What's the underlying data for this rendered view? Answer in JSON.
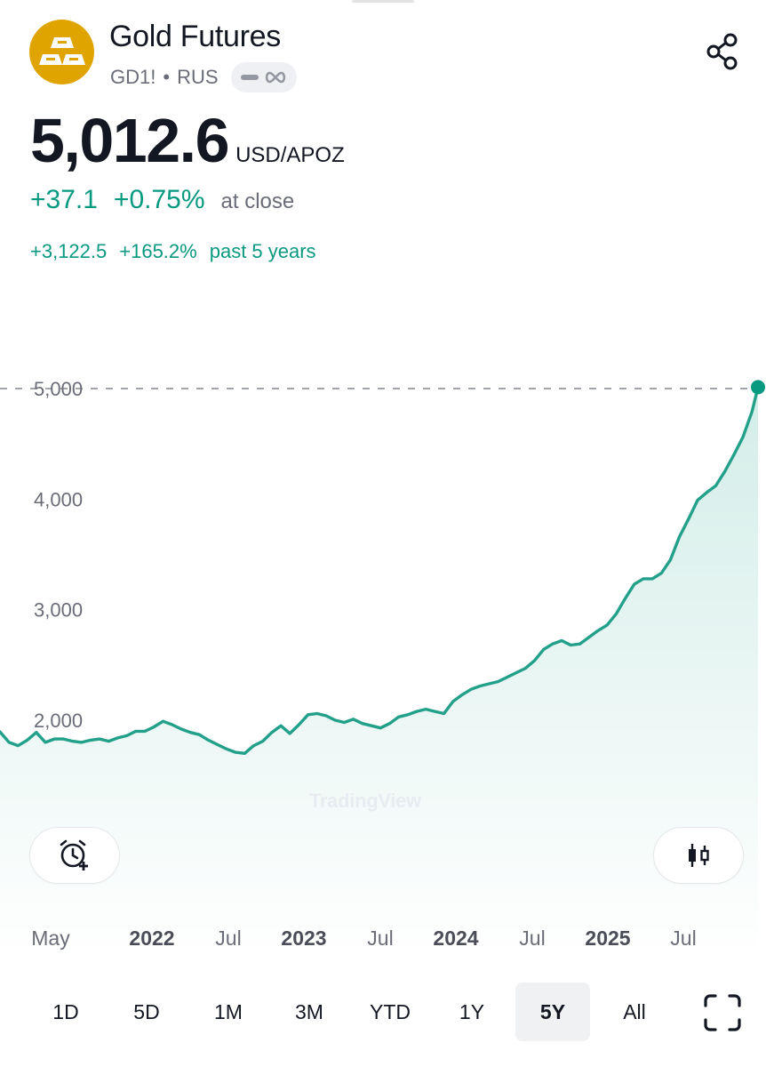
{
  "header": {
    "title": "Gold Futures",
    "symbol": "GD1!",
    "exchange": "RUS",
    "logo_icon": "gold-bars-icon",
    "share_icon": "share-icon",
    "pill_icons": [
      "dash-icon",
      "infinity-icon"
    ]
  },
  "quote": {
    "price": "5,012.6",
    "unit": "USD/APOZ",
    "change_abs": "+37.1",
    "change_pct": "+0.75%",
    "status": "at close",
    "period_abs": "+3,122.5",
    "period_pct": "+165.2%",
    "period_label": "past 5 years"
  },
  "colors": {
    "positive": "#089981",
    "line": "#22a08a",
    "logo_bg": "#e0a400"
  },
  "chart_data": {
    "type": "area",
    "title": "",
    "xlabel": "",
    "ylabel": "",
    "x_tick_labels": [
      "May",
      "2022",
      "Jul",
      "2023",
      "Jul",
      "2024",
      "Jul",
      "2025",
      "Jul"
    ],
    "y_tick_labels": [
      "5,000",
      "4,000",
      "3,000",
      "2,000"
    ],
    "ylim": [
      1200,
      5350
    ],
    "grid": false,
    "last_value": 5012.6,
    "reference_line": 5000,
    "series": [
      {
        "x": [
          "2021-04-05",
          "2021-04-26",
          "2021-05-17",
          "2021-06-07",
          "2021-06-28",
          "2021-07-19",
          "2021-08-09",
          "2021-08-30",
          "2021-09-20",
          "2021-10-11",
          "2021-11-01",
          "2021-11-22",
          "2021-12-13",
          "2022-01-03",
          "2022-01-24",
          "2022-02-14",
          "2022-03-07",
          "2022-03-28",
          "2022-04-18",
          "2022-05-09",
          "2022-05-30",
          "2022-06-20",
          "2022-07-11",
          "2022-08-01",
          "2022-08-22",
          "2022-09-12",
          "2022-10-03",
          "2022-10-24",
          "2022-11-14",
          "2022-12-05",
          "2022-12-26",
          "2023-01-16",
          "2023-02-06",
          "2023-02-27",
          "2023-03-20",
          "2023-04-10",
          "2023-05-01",
          "2023-05-22",
          "2023-06-12",
          "2023-07-03",
          "2023-07-24",
          "2023-08-14",
          "2023-09-04",
          "2023-09-25",
          "2023-10-16",
          "2023-11-06",
          "2023-11-27",
          "2023-12-18",
          "2024-01-08",
          "2024-01-29",
          "2024-02-19",
          "2024-03-11",
          "2024-04-01",
          "2024-04-22",
          "2024-05-13",
          "2024-06-03",
          "2024-06-24",
          "2024-07-15",
          "2024-08-05",
          "2024-08-26",
          "2024-09-16",
          "2024-10-07",
          "2024-10-28",
          "2024-11-18",
          "2024-12-09",
          "2024-12-30",
          "2025-01-20",
          "2025-02-10",
          "2025-03-03",
          "2025-03-24",
          "2025-04-14",
          "2025-05-05",
          "2025-05-26",
          "2025-06-16",
          "2025-07-07",
          "2025-07-28",
          "2025-08-18",
          "2025-09-08",
          "2025-09-29",
          "2025-10-20",
          "2025-11-10",
          "2025-12-01",
          "2025-12-22",
          "2026-01-12",
          "2026-01-26"
        ],
        "values": [
          1895,
          1800,
          1770,
          1820,
          1890,
          1800,
          1830,
          1830,
          1810,
          1800,
          1820,
          1830,
          1810,
          1840,
          1860,
          1900,
          1900,
          1940,
          1990,
          1960,
          1920,
          1890,
          1870,
          1820,
          1780,
          1740,
          1710,
          1700,
          1770,
          1810,
          1890,
          1950,
          1880,
          1960,
          2050,
          2060,
          2040,
          2000,
          1980,
          2010,
          1970,
          1950,
          1930,
          1970,
          2030,
          2050,
          2080,
          2100,
          2080,
          2060,
          2170,
          2230,
          2280,
          2310,
          2330,
          2350,
          2390,
          2430,
          2470,
          2540,
          2640,
          2690,
          2720,
          2680,
          2690,
          2750,
          2810,
          2860,
          2960,
          3100,
          3230,
          3280,
          3280,
          3330,
          3450,
          3660,
          3820,
          3990,
          4060,
          4120,
          4250,
          4400,
          4560,
          4790,
          5012.6
        ]
      }
    ]
  },
  "chart_controls": {
    "watermark": "TradingView",
    "alert_icon": "add-alert-clock-icon",
    "chart_type_icon": "candlestick-icon"
  },
  "ranges": {
    "items": [
      "1D",
      "5D",
      "1M",
      "3M",
      "YTD",
      "1Y",
      "5Y",
      "All"
    ],
    "active": "5Y",
    "fullscreen_icon": "fullscreen-icon"
  }
}
